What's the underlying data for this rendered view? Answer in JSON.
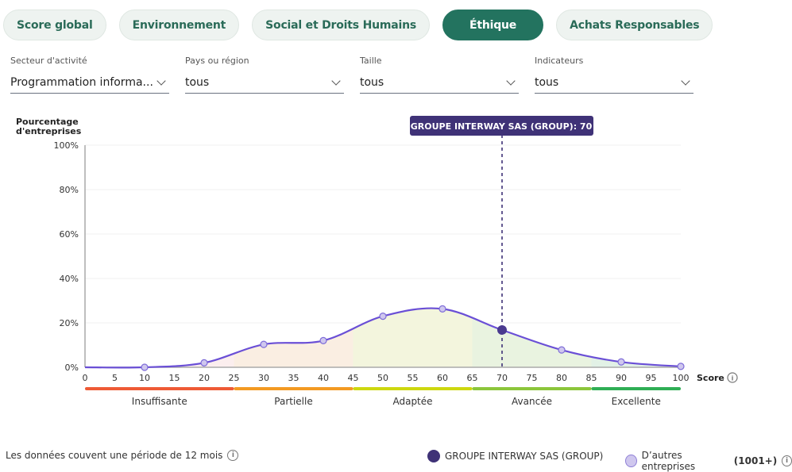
{
  "tabs": [
    {
      "label": "Score global"
    },
    {
      "label": "Environnement"
    },
    {
      "label": "Social et Droits Humains"
    },
    {
      "label": "Éthique",
      "active": true
    },
    {
      "label": "Achats Responsables"
    }
  ],
  "filters": [
    {
      "label": "Secteur d'activité",
      "value": "Programmation informa..."
    },
    {
      "label": "Pays ou région",
      "value": "tous"
    },
    {
      "label": "Taille",
      "value": "tous"
    },
    {
      "label": "Indicateurs",
      "value": "tous"
    }
  ],
  "footer": {
    "note": "Les données couvent une période de 12 mois",
    "legend_company": "GROUPE INTERWAY SAS (GROUP)",
    "legend_others": "D’autres entreprises",
    "legend_others_count": "(1001+)"
  },
  "colors": {
    "accent": "#23735f",
    "line": "#6a4fd6",
    "highlight": "#3f3277",
    "point": "#c9c0ee"
  },
  "chart_data": {
    "type": "line",
    "ylabel": "Pourcentage d'entreprises",
    "xlabel": "Score",
    "xlim": [
      0,
      100
    ],
    "ylim": [
      0,
      100
    ],
    "xticks": [
      0,
      5,
      10,
      15,
      20,
      25,
      30,
      35,
      40,
      45,
      50,
      55,
      60,
      65,
      70,
      75,
      80,
      85,
      90,
      95,
      100
    ],
    "yticks": [
      {
        "v": 0,
        "label": "0%"
      },
      {
        "v": 20,
        "label": "20%"
      },
      {
        "v": 40,
        "label": "40%"
      },
      {
        "v": 60,
        "label": "60%"
      },
      {
        "v": 80,
        "label": "80%"
      },
      {
        "v": 100,
        "label": "100%"
      }
    ],
    "grid": true,
    "points": [
      {
        "x": 0,
        "y": 0,
        "marker": false
      },
      {
        "x": 10,
        "y": 0
      },
      {
        "x": 20,
        "y": 2
      },
      {
        "x": 30,
        "y": 10.3
      },
      {
        "x": 40,
        "y": 12
      },
      {
        "x": 50,
        "y": 23
      },
      {
        "x": 60,
        "y": 26.3
      },
      {
        "x": 70,
        "y": 16.8,
        "highlight": true
      },
      {
        "x": 80,
        "y": 7.8
      },
      {
        "x": 90,
        "y": 2.4
      },
      {
        "x": 100,
        "y": 0.4
      }
    ],
    "highlight_label": "GROUPE INTERWAY SAS (GROUP): 70",
    "bands": [
      {
        "from": 0,
        "to": 25,
        "label": "Insuffisante",
        "color": "#ee5a35",
        "fill": "#fbeeee"
      },
      {
        "from": 25,
        "to": 45,
        "label": "Partielle",
        "color": "#f39a22",
        "fill": "#faeee2"
      },
      {
        "from": 45,
        "to": 65,
        "label": "Adaptée",
        "color": "#cdd80f",
        "fill": "#f3f5dd"
      },
      {
        "from": 65,
        "to": 85,
        "label": "Avancée",
        "color": "#8cc63b",
        "fill": "#e9f3e0"
      },
      {
        "from": 85,
        "to": 100,
        "label": "Excellente",
        "color": "#2fae55",
        "fill": "#e2f1e6"
      }
    ]
  }
}
